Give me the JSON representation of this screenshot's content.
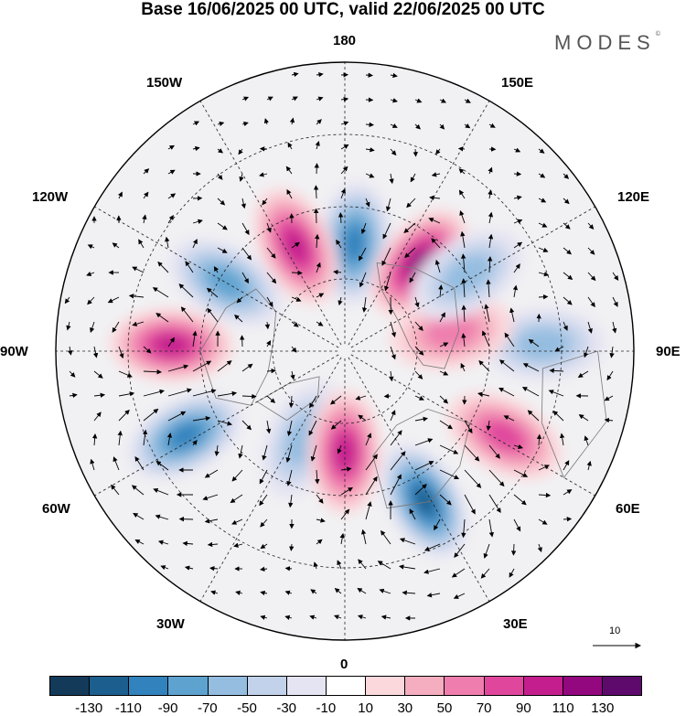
{
  "title": "Base 16/06/2025 00 UTC, valid 22/06/2025 00 UTC",
  "brand": {
    "text": "MODES",
    "mark": "©"
  },
  "longitude_labels": {
    "n180": "180",
    "w150": "150W",
    "e150": "150E",
    "w120": "120W",
    "e120": "120E",
    "w90": "90W",
    "e90": "90E",
    "w60": "60W",
    "e60": "60E",
    "w30": "30W",
    "e30": "30E",
    "s0": "0"
  },
  "wind_scale": {
    "label": "10"
  },
  "colorbar": {
    "colors": [
      "#143a5a",
      "#1c5f8f",
      "#3282bd",
      "#5ea3d0",
      "#94bde0",
      "#c2d2ea",
      "#e5e4f2",
      "#ffffff",
      "#fbd8dc",
      "#f5aebf",
      "#ef7eae",
      "#e0479c",
      "#c41e8e",
      "#94087f",
      "#5e0a6c"
    ],
    "ticks": [
      "-130",
      "-110",
      "-90",
      "-70",
      "-50",
      "-30",
      "-10",
      "10",
      "30",
      "50",
      "70",
      "90",
      "110",
      "130"
    ]
  },
  "anomalies": [
    {
      "lon": 175,
      "lat": 60,
      "value": -85
    },
    {
      "lon": 140,
      "lat": 58,
      "value": 105
    },
    {
      "lon": 205,
      "lat": 58,
      "value": 75
    },
    {
      "lon": 240,
      "lat": 52,
      "value": -60
    },
    {
      "lon": 268,
      "lat": 42,
      "value": 80
    },
    {
      "lon": 298,
      "lat": 40,
      "value": -80
    },
    {
      "lon": 335,
      "lat": 63,
      "value": -45
    },
    {
      "lon": 0,
      "lat": 62,
      "value": 90
    },
    {
      "lon": 28,
      "lat": 43,
      "value": -95
    },
    {
      "lon": 62,
      "lat": 40,
      "value": 65
    },
    {
      "lon": 92,
      "lat": 35,
      "value": -45
    },
    {
      "lon": 100,
      "lat": 60,
      "value": 45
    },
    {
      "lon": 122,
      "lat": 50,
      "value": -50
    }
  ]
}
